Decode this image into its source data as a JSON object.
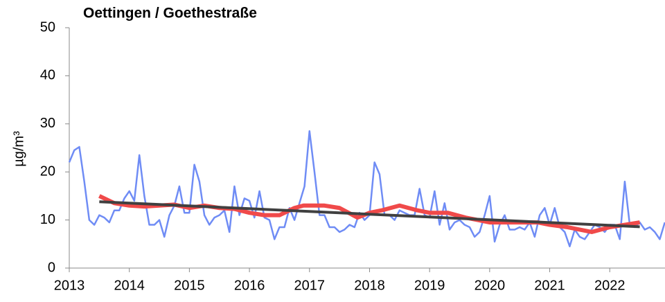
{
  "chart_data": {
    "type": "line",
    "title": "Oettingen / Goethestraße",
    "ylabel": "µg/m³",
    "xlim": [
      2013,
      2022.92
    ],
    "xticks": [
      2013,
      2014,
      2015,
      2016,
      2017,
      2018,
      2019,
      2020,
      2021,
      2022
    ],
    "ylim": [
      0,
      50
    ],
    "yticks": [
      0,
      10,
      20,
      30,
      40,
      50
    ],
    "grid": false,
    "series": [
      {
        "color": "#6f8cf5",
        "width": 2.5,
        "x": [
          2013,
          2013.083,
          2013.167,
          2013.25,
          2013.333,
          2013.417,
          2013.5,
          2013.583,
          2013.667,
          2013.75,
          2013.833,
          2013.917,
          2014,
          2014.083,
          2014.167,
          2014.25,
          2014.333,
          2014.417,
          2014.5,
          2014.583,
          2014.667,
          2014.75,
          2014.833,
          2014.917,
          2015,
          2015.083,
          2015.167,
          2015.25,
          2015.333,
          2015.417,
          2015.5,
          2015.583,
          2015.667,
          2015.75,
          2015.833,
          2015.917,
          2016,
          2016.083,
          2016.167,
          2016.25,
          2016.333,
          2016.417,
          2016.5,
          2016.583,
          2016.667,
          2016.75,
          2016.833,
          2016.917,
          2017,
          2017.083,
          2017.167,
          2017.25,
          2017.333,
          2017.417,
          2017.5,
          2017.583,
          2017.667,
          2017.75,
          2017.833,
          2017.917,
          2018,
          2018.083,
          2018.167,
          2018.25,
          2018.333,
          2018.417,
          2018.5,
          2018.583,
          2018.667,
          2018.75,
          2018.833,
          2018.917,
          2019,
          2019.083,
          2019.167,
          2019.25,
          2019.333,
          2019.417,
          2019.5,
          2019.583,
          2019.667,
          2019.75,
          2019.833,
          2019.917,
          2020,
          2020.083,
          2020.167,
          2020.25,
          2020.333,
          2020.417,
          2020.5,
          2020.583,
          2020.667,
          2020.75,
          2020.833,
          2020.917,
          2021,
          2021.083,
          2021.167,
          2021.25,
          2021.333,
          2021.417,
          2021.5,
          2021.583,
          2021.667,
          2021.75,
          2021.833,
          2021.917,
          2022,
          2022.083,
          2022.167,
          2022.25,
          2022.333,
          2022.417,
          2022.5,
          2022.583,
          2022.667,
          2022.75,
          2022.833,
          2022.917
        ],
        "values": [
          22,
          24.5,
          25.2,
          18,
          10,
          9,
          11,
          10.5,
          9.5,
          12,
          12,
          14.5,
          16,
          14,
          23.5,
          15,
          9,
          9,
          10,
          6.5,
          11,
          13,
          17,
          11.5,
          11.5,
          21.5,
          18,
          11,
          9,
          10.5,
          11,
          12,
          7.5,
          17,
          11,
          14.5,
          14,
          10.5,
          16,
          10.5,
          10,
          6,
          8.5,
          8.5,
          12.5,
          10,
          13.5,
          17,
          28.5,
          20,
          11,
          11,
          8.5,
          8.5,
          7.5,
          8,
          9,
          8.5,
          11.5,
          10,
          11,
          22,
          19.5,
          11,
          11,
          10,
          12,
          11.5,
          11,
          11,
          16.5,
          11,
          10.5,
          16,
          9,
          13.5,
          8,
          9.5,
          10,
          9,
          8.5,
          6.5,
          7.5,
          11,
          15,
          5.5,
          9,
          11,
          8,
          8,
          8.5,
          8,
          9.5,
          6.5,
          11,
          12.5,
          9,
          12.5,
          8.5,
          7.5,
          4.5,
          8,
          6.5,
          6,
          7.5,
          9,
          8.5,
          7.5,
          9,
          9,
          6,
          18,
          9,
          8.5,
          9.5,
          8,
          8.5,
          7.5,
          6,
          9.5
        ]
      },
      {
        "color": "#f04a4a",
        "width": 6,
        "x": [
          2013.5,
          2013.75,
          2014,
          2014.25,
          2014.5,
          2014.75,
          2015,
          2015.25,
          2015.5,
          2015.75,
          2016,
          2016.25,
          2016.5,
          2016.75,
          2016.9,
          2017.25,
          2017.5,
          2017.8,
          2018,
          2018.2,
          2018.5,
          2018.8,
          2019,
          2019.3,
          2019.6,
          2019.8,
          2020,
          2020.3,
          2020.6,
          2020.8,
          2021,
          2021.3,
          2021.7,
          2022,
          2022.25,
          2022.5
        ],
        "values": [
          15,
          13.5,
          13,
          12.8,
          13,
          13.2,
          12.5,
          13,
          12.5,
          12.3,
          11.5,
          11,
          11,
          12.5,
          13,
          13,
          12.5,
          10.5,
          11.5,
          12,
          13,
          12,
          11.5,
          11.5,
          10.5,
          10,
          9.5,
          9.5,
          9.5,
          9.5,
          9,
          8.5,
          7.5,
          8.5,
          9,
          9.5
        ]
      },
      {
        "color": "#404040",
        "width": 4,
        "x": [
          2013.5,
          2022.5
        ],
        "values": [
          13.8,
          8.6
        ]
      }
    ]
  }
}
